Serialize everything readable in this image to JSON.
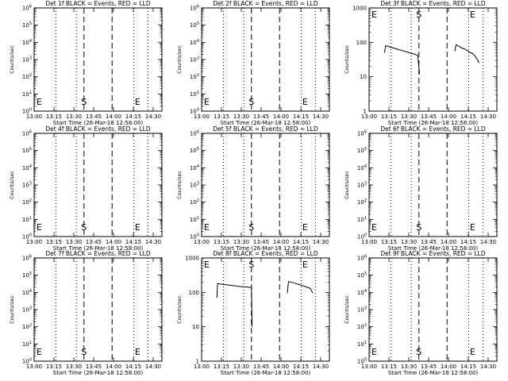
{
  "chart_data": [
    {
      "type": "line",
      "title": "Det 1f BLACK = Events, RED = LLD",
      "xlabel": "Start Time (26-Mar-18 12:58:00)",
      "ylabel": "Counts/sec",
      "ylog": true,
      "ylim_exp": [
        0,
        6
      ],
      "ytick_exp": [
        0,
        1,
        2,
        3,
        4,
        5,
        6
      ],
      "xticks": [
        "13:00",
        "13:15",
        "13:30",
        "13:45",
        "14:00",
        "14:15",
        "14:30"
      ],
      "xlim": [
        0,
        100
      ],
      "start_line": 39,
      "end_line": 83,
      "mid_line": 61,
      "dotted_lines": [
        17,
        33,
        78,
        89
      ],
      "S_label": "S",
      "E_label": "E",
      "start_label_x": 39,
      "end_label_x": 81,
      "series": []
    },
    {
      "type": "line",
      "title": "Det 2f BLACK = Events, RED = LLD",
      "xlabel": "Start Time (26-Mar-18 12:58:00)",
      "ylabel": "Counts/sec",
      "ylog": true,
      "ylim_exp": [
        0,
        6
      ],
      "ytick_exp": [
        0,
        1,
        2,
        3,
        4,
        5,
        6
      ],
      "xticks": [
        "13:00",
        "13:15",
        "13:30",
        "13:45",
        "14:00",
        "14:15",
        "14:30"
      ],
      "xlim": [
        0,
        100
      ],
      "start_line": 39,
      "end_line": 83,
      "mid_line": 61,
      "dotted_lines": [
        17,
        33,
        78,
        89
      ],
      "S_label": "S",
      "E_label": "E",
      "start_label_x": 39,
      "end_label_x": 81,
      "series": []
    },
    {
      "type": "line",
      "title": "Det 3f BLACK = Events, RED = LLD",
      "xlabel": "Start Time (26-Mar-18 12:58:00)",
      "ylabel": "Counts/sec",
      "ylog": true,
      "ylim_exp": [
        0,
        3
      ],
      "ytick_values": [
        "1",
        "10",
        "100",
        "1000"
      ],
      "xticks": [
        "13:00",
        "13:15",
        "13:30",
        "13:45",
        "14:00",
        "14:15",
        "14:30"
      ],
      "xlim": [
        0,
        100
      ],
      "start_line": 39,
      "end_line": 83,
      "mid_line": 61,
      "dotted_lines": [
        17,
        33,
        78,
        89
      ],
      "S_label": "S",
      "E_label": "E",
      "start_label_x": 39,
      "end_label_x": 81,
      "series": [
        {
          "segments": [
            [
              [
                12,
                50
              ],
              [
                13,
                80
              ],
              [
                15,
                76
              ],
              [
                18,
                70
              ],
              [
                21,
                65
              ],
              [
                24,
                60
              ],
              [
                27,
                56
              ],
              [
                30,
                52
              ],
              [
                33,
                48
              ],
              [
                36,
                45
              ],
              [
                38,
                42
              ],
              [
                39.5,
                12
              ]
            ],
            [
              [
                67,
                55
              ],
              [
                68,
                85
              ],
              [
                70,
                78
              ],
              [
                72,
                70
              ],
              [
                75,
                63
              ],
              [
                77,
                57
              ],
              [
                79,
                51
              ],
              [
                81,
                47
              ],
              [
                83,
                40
              ],
              [
                85,
                30
              ],
              [
                86,
                25
              ]
            ]
          ]
        }
      ]
    },
    {
      "type": "line",
      "title": "Det 4f BLACK = Events, RED = LLD",
      "xlabel": "Start Time (26-Mar-18 12:58:00)",
      "ylabel": "Counts/sec",
      "ylog": true,
      "ylim_exp": [
        0,
        6
      ],
      "ytick_exp": [
        0,
        1,
        2,
        3,
        4,
        5,
        6
      ],
      "xticks": [
        "13:00",
        "13:15",
        "13:30",
        "13:45",
        "14:00",
        "14:15",
        "14:30"
      ],
      "xlim": [
        0,
        100
      ],
      "start_line": 39,
      "end_line": 83,
      "mid_line": 61,
      "dotted_lines": [
        17,
        33,
        78,
        89
      ],
      "S_label": "S",
      "E_label": "E",
      "start_label_x": 39,
      "end_label_x": 81,
      "series": []
    },
    {
      "type": "line",
      "title": "Det 5f BLACK = Events, RED = LLD",
      "xlabel": "Start Time (26-Mar-18 12:58:00)",
      "ylabel": "Counts/sec",
      "ylog": true,
      "ylim_exp": [
        0,
        6
      ],
      "ytick_exp": [
        0,
        1,
        2,
        3,
        4,
        5,
        6
      ],
      "xticks": [
        "13:00",
        "13:15",
        "13:30",
        "13:45",
        "14:00",
        "14:15",
        "14:30"
      ],
      "xlim": [
        0,
        100
      ],
      "start_line": 39,
      "end_line": 83,
      "mid_line": 61,
      "dotted_lines": [
        17,
        33,
        78,
        89
      ],
      "S_label": "S",
      "E_label": "E",
      "start_label_x": 39,
      "end_label_x": 81,
      "series": []
    },
    {
      "type": "line",
      "title": "Det 6f BLACK = Events, RED = LLD",
      "xlabel": "Start Time (26-Mar-18 12:58:00)",
      "ylabel": "Counts/sec",
      "ylog": true,
      "ylim_exp": [
        0,
        6
      ],
      "ytick_exp": [
        0,
        1,
        2,
        3,
        4,
        5,
        6
      ],
      "xticks": [
        "13:00",
        "13:15",
        "13:30",
        "13:45",
        "14:00",
        "14:15",
        "14:30"
      ],
      "xlim": [
        0,
        100
      ],
      "start_line": 39,
      "end_line": 83,
      "mid_line": 61,
      "dotted_lines": [
        17,
        33,
        78,
        89
      ],
      "S_label": "S",
      "E_label": "E",
      "start_label_x": 39,
      "end_label_x": 81,
      "series": []
    },
    {
      "type": "line",
      "title": "Det 7f BLACK = Events, RED = LLD",
      "xlabel": "Start Time (26-Mar-18 12:58:00)",
      "ylabel": "Counts/sec",
      "ylog": true,
      "ylim_exp": [
        0,
        6
      ],
      "ytick_exp": [
        0,
        1,
        2,
        3,
        4,
        5,
        6
      ],
      "xticks": [
        "13:00",
        "13:15",
        "13:30",
        "13:45",
        "14:00",
        "14:15",
        "14:30"
      ],
      "xlim": [
        0,
        100
      ],
      "start_line": 39,
      "end_line": 83,
      "mid_line": 61,
      "dotted_lines": [
        17,
        33,
        78,
        89
      ],
      "S_label": "S",
      "E_label": "E",
      "start_label_x": 39,
      "end_label_x": 81,
      "series": []
    },
    {
      "type": "line",
      "title": "Det 8f BLACK = Events, RED = LLD",
      "xlabel": "Start Time (26-Mar-18 12:58:00)",
      "ylabel": "Counts/sec",
      "ylog": true,
      "ylim_exp": [
        0,
        3
      ],
      "ytick_values": [
        "1",
        "10",
        "100",
        "1000"
      ],
      "xticks": [
        "13:00",
        "13:15",
        "13:30",
        "13:45",
        "14:00",
        "14:15",
        "14:30"
      ],
      "xlim": [
        0,
        100
      ],
      "start_line": 39,
      "end_line": 83,
      "mid_line": 61,
      "dotted_lines": [
        17,
        33,
        78,
        89
      ],
      "S_label": "S",
      "E_label": "E",
      "start_label_x": 39,
      "end_label_x": 81,
      "series": [
        {
          "segments": [
            [
              [
                12,
                70
              ],
              [
                12.5,
                180
              ],
              [
                16,
                172
              ],
              [
                20,
                165
              ],
              [
                24,
                158
              ],
              [
                28,
                152
              ],
              [
                32,
                146
              ],
              [
                36,
                142
              ],
              [
                39,
                138
              ],
              [
                39.5,
                10
              ]
            ],
            [
              [
                67,
                95
              ],
              [
                68,
                205
              ],
              [
                71,
                195
              ],
              [
                74,
                180
              ],
              [
                77,
                165
              ],
              [
                80,
                152
              ],
              [
                83,
                140
              ],
              [
                85,
                130
              ],
              [
                87,
                95
              ]
            ]
          ]
        }
      ]
    },
    {
      "type": "line",
      "title": "Det 9f BLACK = Events, RED = LLD",
      "xlabel": "Start Time (26-Mar-18 12:58:00)",
      "ylabel": "Counts/sec",
      "ylog": true,
      "ylim_exp": [
        0,
        6
      ],
      "ytick_exp": [
        0,
        1,
        2,
        3,
        4,
        5,
        6
      ],
      "xticks": [
        "13:00",
        "13:15",
        "13:30",
        "13:45",
        "14:00",
        "14:15",
        "14:30"
      ],
      "xlim": [
        0,
        100
      ],
      "start_line": 39,
      "end_line": 83,
      "mid_line": 61,
      "dotted_lines": [
        17,
        33,
        78,
        89
      ],
      "S_label": "S",
      "E_label": "E",
      "start_label_x": 39,
      "end_label_x": 81,
      "series": []
    }
  ]
}
